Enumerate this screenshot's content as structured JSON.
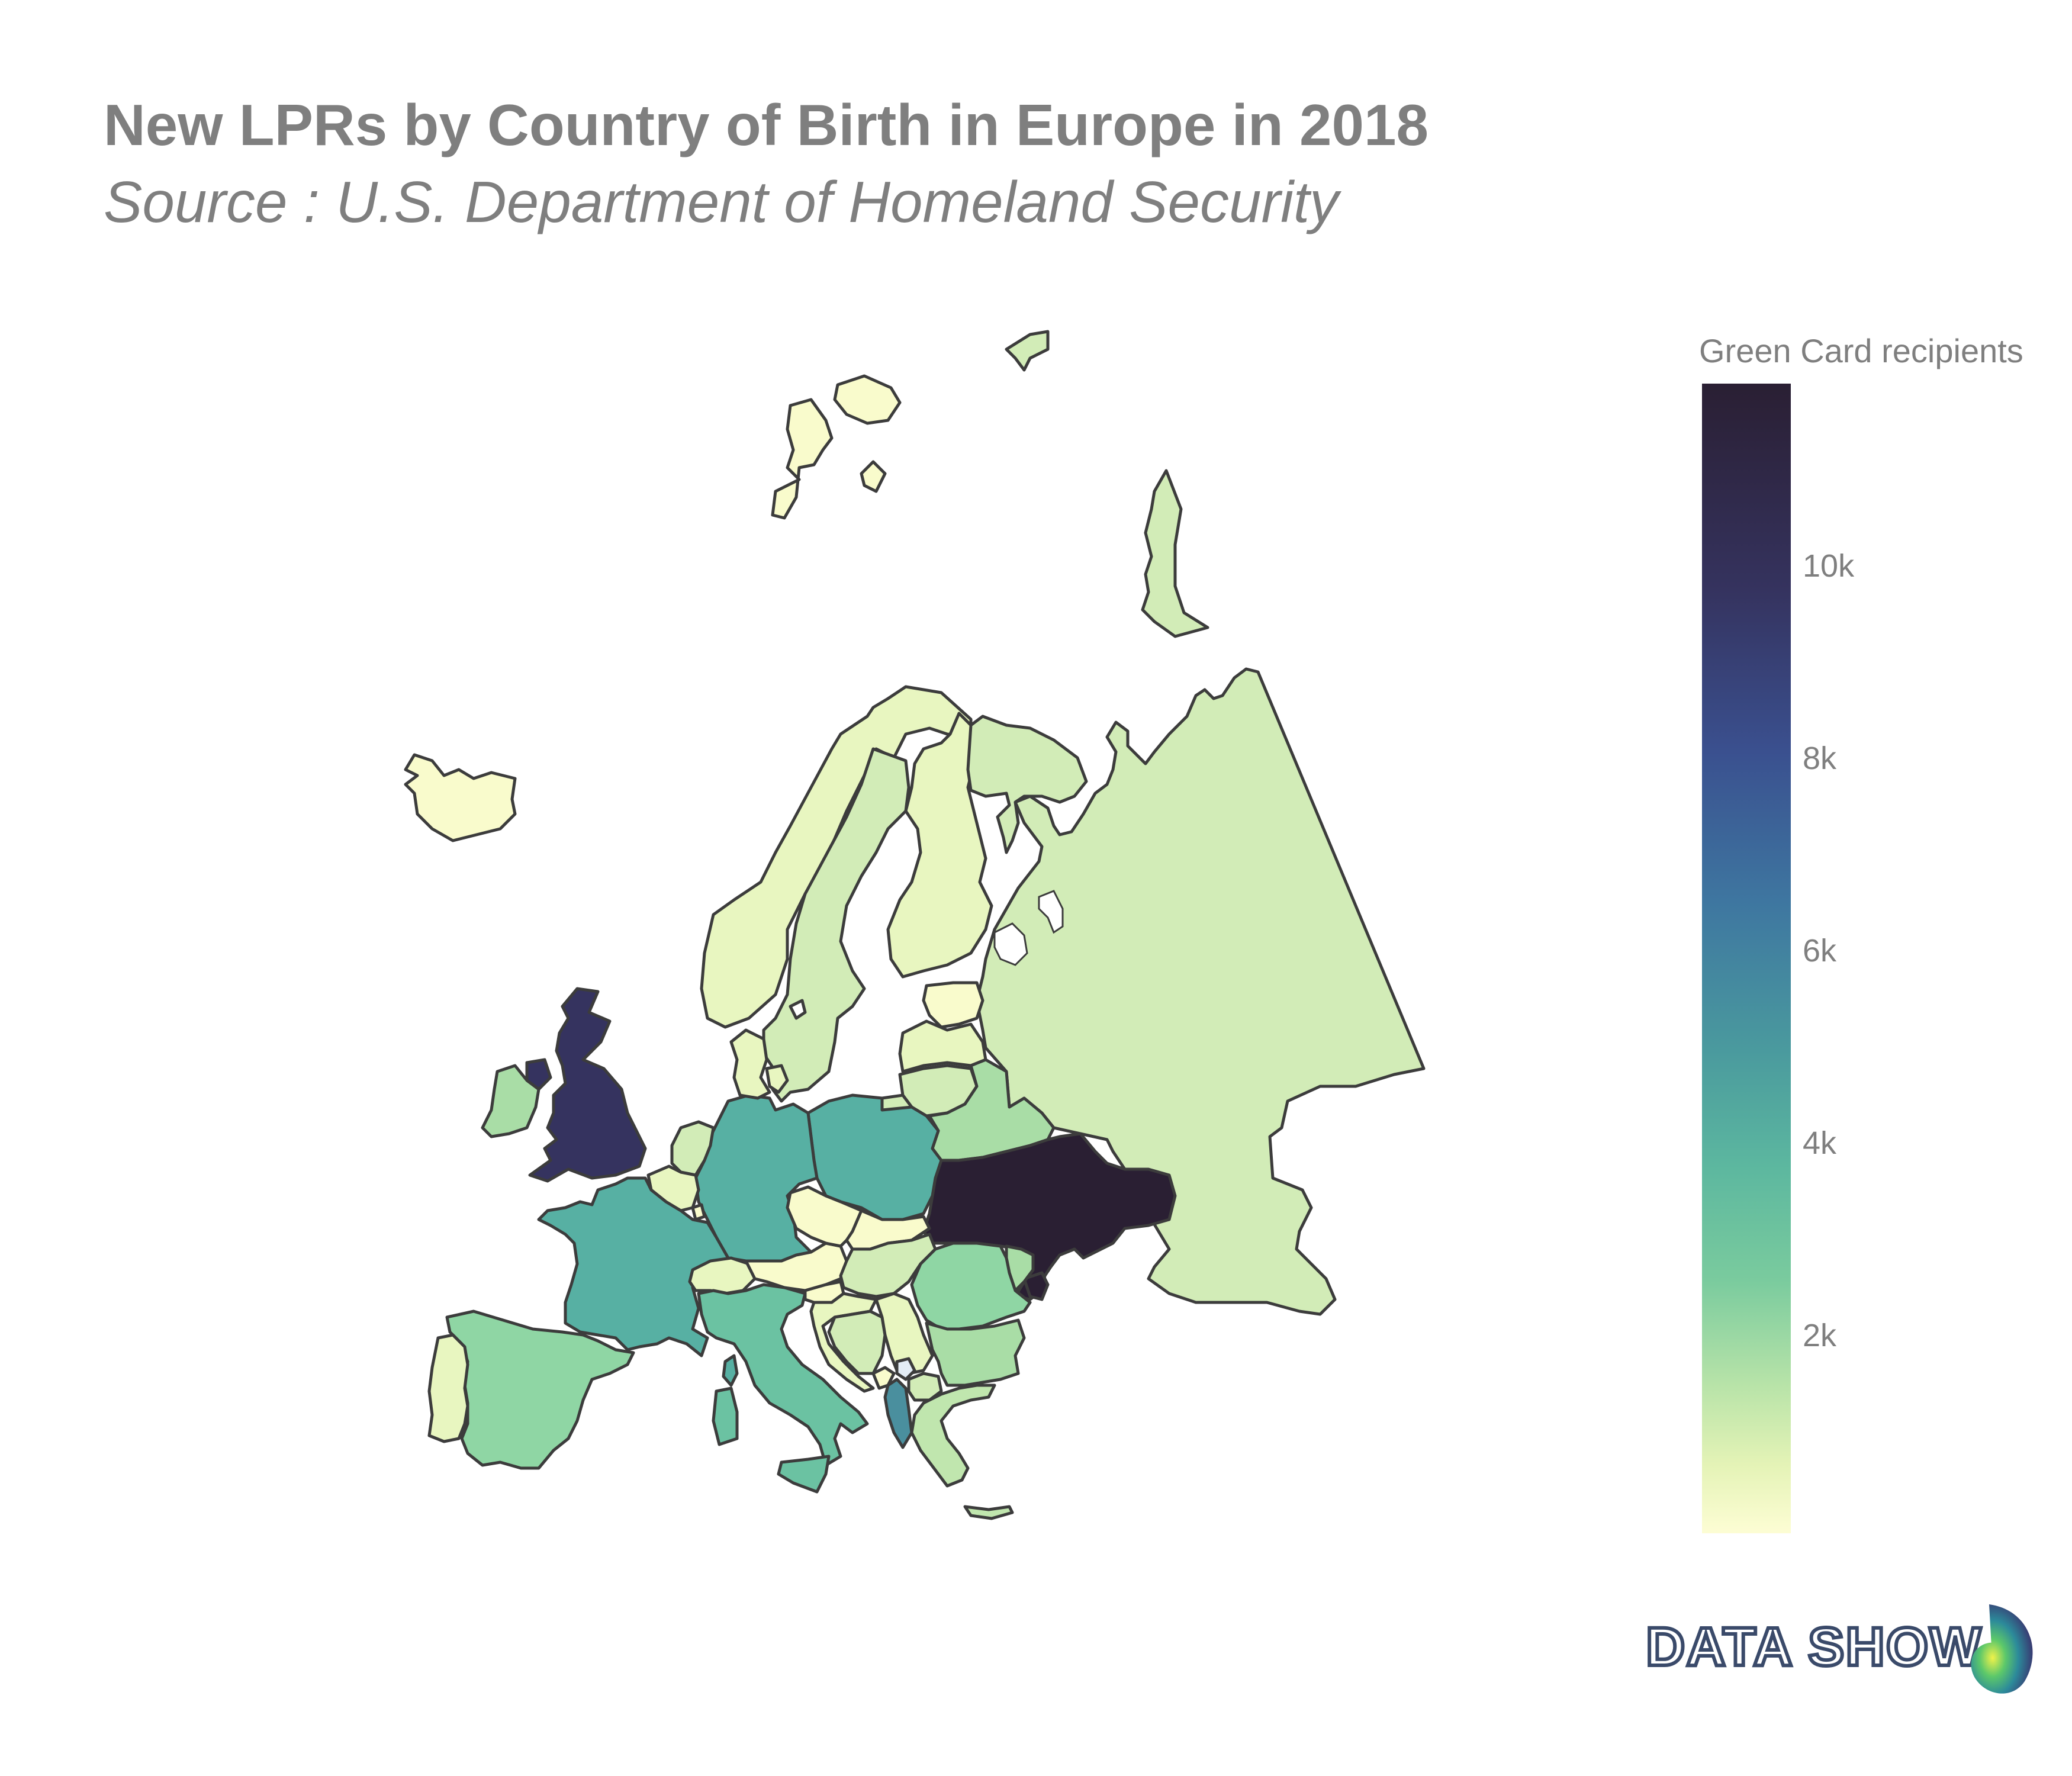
{
  "title": "New LPRs by Country of Birth in Europe in 2018",
  "subtitle": "Source : U.S. Department of Homeland Security",
  "legend": {
    "title": "Green Card recipients",
    "ticks": [
      "10k",
      "8k",
      "6k",
      "4k",
      "2k"
    ]
  },
  "brand": "DATA SHOW",
  "colors": {
    "very_high": "#2a1f33",
    "high": "#35335f",
    "mid_high": "#4a8f9e",
    "mid": "#57b0a3",
    "mid_low": "#8fd6a4",
    "low": "#d2ecb7",
    "very_low": "#f9fbcc"
  },
  "chart_data": {
    "type": "choropleth",
    "title": "New LPRs by Country of Birth in Europe in 2018",
    "subtitle": "Source : U.S. Department of Homeland Security",
    "colorbar_title": "Green Card recipients",
    "colorbar_ticks": [
      2000,
      4000,
      6000,
      8000,
      10000
    ],
    "regions": [
      {
        "name": "Ukraine",
        "value": 11600
      },
      {
        "name": "United Kingdom",
        "value": 10500
      },
      {
        "name": "Albania",
        "value": 5500
      },
      {
        "name": "Germany",
        "value": 4800
      },
      {
        "name": "France",
        "value": 4700
      },
      {
        "name": "Poland",
        "value": 4700
      },
      {
        "name": "Italy",
        "value": 3600
      },
      {
        "name": "Spain",
        "value": 3000
      },
      {
        "name": "Romania",
        "value": 2800
      },
      {
        "name": "Belarus",
        "value": 2400
      },
      {
        "name": "Ireland",
        "value": 2000
      },
      {
        "name": "Bulgaria",
        "value": 2000
      },
      {
        "name": "Moldova",
        "value": 1900
      },
      {
        "name": "Greece",
        "value": 1500
      },
      {
        "name": "Russia",
        "value": 1200
      },
      {
        "name": "Sweden",
        "value": 1000
      },
      {
        "name": "Netherlands",
        "value": 1700
      },
      {
        "name": "Norway",
        "value": 400
      },
      {
        "name": "Finland",
        "value": 400
      },
      {
        "name": "Portugal",
        "value": 900
      },
      {
        "name": "Serbia",
        "value": 900
      },
      {
        "name": "Bosnia and Herzegovina",
        "value": 900
      },
      {
        "name": "Hungary",
        "value": 1000
      },
      {
        "name": "Lithuania",
        "value": 1000
      },
      {
        "name": "Latvia",
        "value": 500
      },
      {
        "name": "Estonia",
        "value": 200
      },
      {
        "name": "Denmark",
        "value": 500
      },
      {
        "name": "Belgium",
        "value": 900
      },
      {
        "name": "Switzerland",
        "value": 900
      },
      {
        "name": "Austria",
        "value": 500
      },
      {
        "name": "Czech Republic",
        "value": 300
      },
      {
        "name": "Slovakia",
        "value": 300
      },
      {
        "name": "Slovenia",
        "value": 100
      },
      {
        "name": "Croatia",
        "value": 400
      },
      {
        "name": "North Macedonia",
        "value": 1100
      },
      {
        "name": "Montenegro",
        "value": 300
      },
      {
        "name": "Iceland",
        "value": 100
      }
    ]
  }
}
